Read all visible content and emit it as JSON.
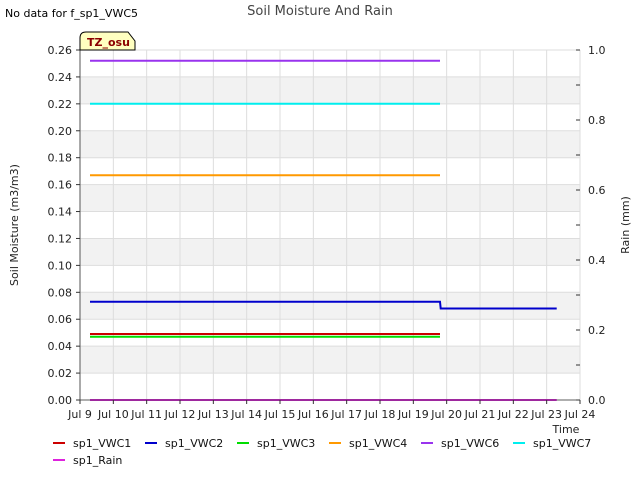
{
  "no_data_notice": "No data for f_sp1_VWC5",
  "timezone_badge": "TZ_osu",
  "chart_data": {
    "type": "line",
    "title": "Soil Moisture And Rain",
    "xlabel": "Time",
    "ylabel": "Soil Moisture (m3/m3)",
    "y2label": "Rain (mm)",
    "xlim": [
      9,
      24
    ],
    "ylim": [
      0,
      0.26
    ],
    "y2lim": [
      0,
      1.0
    ],
    "x_ticks": [
      9,
      10,
      11,
      12,
      13,
      14,
      15,
      16,
      17,
      18,
      19,
      20,
      21,
      22,
      23,
      24
    ],
    "x_tick_labels": [
      "Jul 9",
      "Jul 10",
      "Jul 11",
      "Jul 12",
      "Jul 13",
      "Jul 14",
      "Jul 15",
      "Jul 16",
      "Jul 17",
      "Jul 18",
      "Jul 19",
      "Jul 20",
      "Jul 21",
      "Jul 22",
      "Jul 23",
      "Jul 24"
    ],
    "y_ticks": [
      0,
      0.02,
      0.04,
      0.06,
      0.08,
      0.1,
      0.12,
      0.14,
      0.16,
      0.18,
      0.2,
      0.22,
      0.24,
      0.26
    ],
    "y_tick_labels": [
      "0.00",
      "0.02",
      "0.04",
      "0.06",
      "0.08",
      "0.10",
      "0.12",
      "0.14",
      "0.16",
      "0.18",
      "0.20",
      "0.22",
      "0.24",
      "0.26"
    ],
    "y2_ticks": [
      0,
      0.2,
      0.4,
      0.6,
      0.8,
      1.0
    ],
    "y2_tick_labels": [
      "0.0",
      "0.2",
      "0.4",
      "0.6",
      "0.8",
      "1.0"
    ],
    "series": [
      {
        "name": "sp1_VWC1",
        "color": "#cc0000",
        "axis": "left",
        "x": [
          9.3,
          19.8
        ],
        "y": [
          0.049,
          0.049
        ]
      },
      {
        "name": "sp1_VWC2",
        "color": "#0000cc",
        "axis": "left",
        "x": [
          9.3,
          19.8,
          19.82,
          23.3
        ],
        "y": [
          0.073,
          0.073,
          0.068,
          0.068
        ]
      },
      {
        "name": "sp1_VWC3",
        "color": "#00dd00",
        "axis": "left",
        "x": [
          9.3,
          19.8
        ],
        "y": [
          0.047,
          0.047
        ]
      },
      {
        "name": "sp1_VWC4",
        "color": "#ff9900",
        "axis": "left",
        "x": [
          9.3,
          19.8
        ],
        "y": [
          0.167,
          0.167
        ]
      },
      {
        "name": "sp1_VWC6",
        "color": "#9933ee",
        "axis": "left",
        "x": [
          9.3,
          19.8
        ],
        "y": [
          0.252,
          0.252
        ]
      },
      {
        "name": "sp1_VWC7",
        "color": "#00eeee",
        "axis": "left",
        "x": [
          9.3,
          19.8
        ],
        "y": [
          0.22,
          0.22
        ]
      },
      {
        "name": "sp1_Rain",
        "color": "#dd22dd",
        "axis": "right",
        "x": [
          9.3,
          23.3
        ],
        "y": [
          0.0,
          0.0
        ]
      }
    ],
    "grid": true,
    "legend_position": "bottom"
  }
}
